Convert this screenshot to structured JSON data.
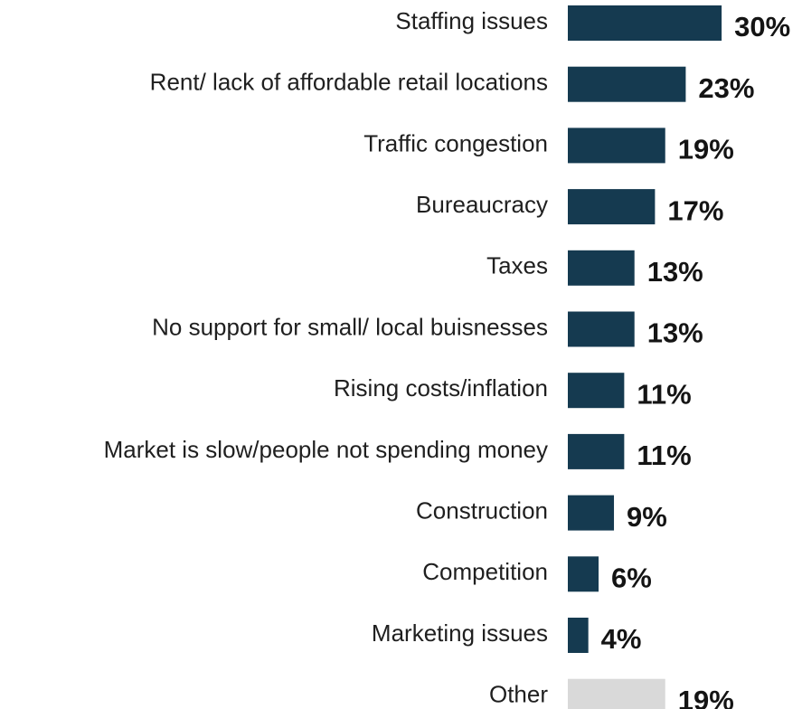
{
  "chart_data": {
    "type": "bar",
    "orientation": "horizontal",
    "categories": [
      "Staffing issues",
      "Rent/ lack of affordable retail locations",
      "Traffic congestion",
      "Bureaucracy",
      "Taxes",
      "No support for small/ local buisnesses",
      "Rising costs/inflation",
      "Market is slow/people not spending money",
      "Construction",
      "Competition",
      "Marketing issues",
      "Other"
    ],
    "values": [
      30,
      23,
      19,
      17,
      13,
      13,
      11,
      11,
      9,
      6,
      4,
      19
    ],
    "value_labels": [
      "30%",
      "23%",
      "19%",
      "17%",
      "13%",
      "13%",
      "11%",
      "11%",
      "9%",
      "6%",
      "4%",
      "19%"
    ],
    "unit": "%",
    "colors": {
      "bar": "#153a50",
      "other_bar": "#d9d9d9"
    },
    "highlight_other_index": 11,
    "title": "",
    "xlabel": "",
    "ylabel": "",
    "grid": false,
    "legend": "none"
  }
}
